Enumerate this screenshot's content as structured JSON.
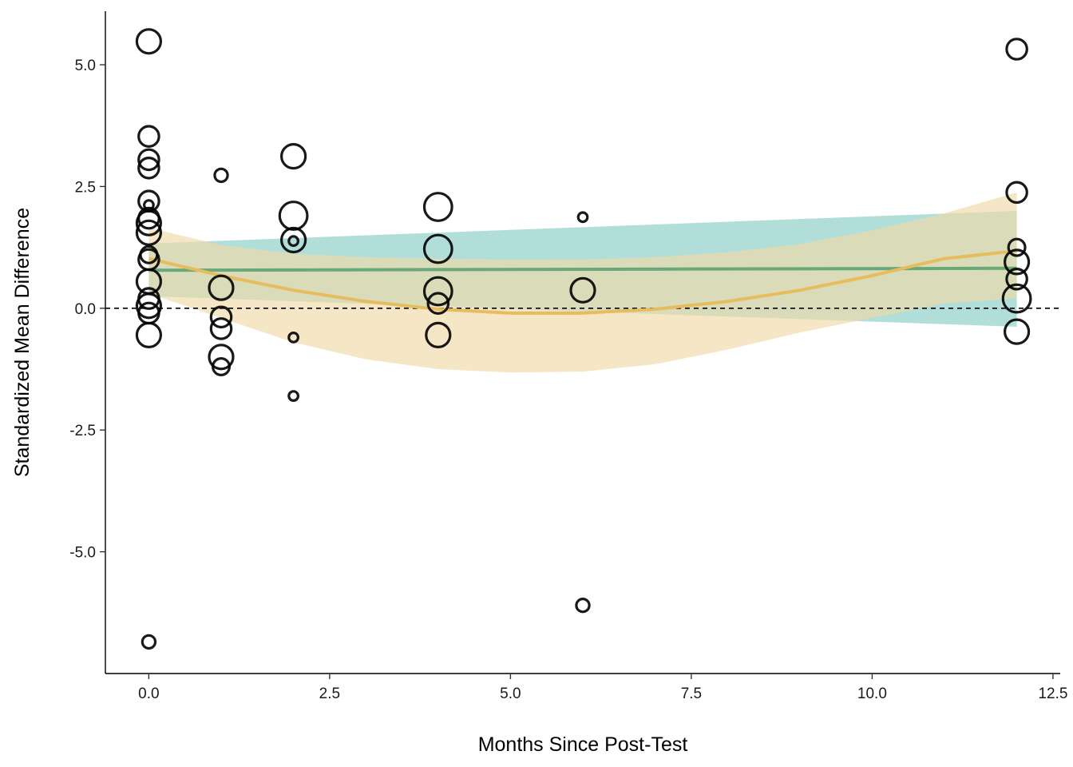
{
  "chart_data": {
    "type": "scatter",
    "title": "",
    "xlabel": "Months Since Post-Test",
    "ylabel": "Standardized Mean Difference",
    "xlim": [
      -0.6,
      12.6
    ],
    "ylim": [
      -7.5,
      6.1
    ],
    "x_ticks": [
      {
        "value": 0.0,
        "label": "0.0"
      },
      {
        "value": 2.5,
        "label": "2.5"
      },
      {
        "value": 5.0,
        "label": "5.0"
      },
      {
        "value": 7.5,
        "label": "7.5"
      },
      {
        "value": 10.0,
        "label": "10.0"
      },
      {
        "value": 12.5,
        "label": "12.5"
      }
    ],
    "y_ticks": [
      {
        "value": 5.0,
        "label": "5.0"
      },
      {
        "value": 2.5,
        "label": "2.5"
      },
      {
        "value": 0.0,
        "label": "0.0"
      },
      {
        "value": -2.5,
        "label": "-2.5"
      },
      {
        "value": -5.0,
        "label": "-5.0"
      }
    ],
    "grid": false,
    "reference_line": {
      "y": 0,
      "style": "dashed",
      "color": "#000000"
    },
    "colors": {
      "linear_fit": "#6aa87a",
      "linear_band": "#7fc8c2",
      "quadratic_fit": "#e6bd5e",
      "quadratic_band": "#efd9a6",
      "points": "#000000"
    },
    "points": [
      {
        "x": 0,
        "y": 5.48,
        "size": 5
      },
      {
        "x": 0,
        "y": 3.53,
        "size": 4
      },
      {
        "x": 0,
        "y": 3.05,
        "size": 4
      },
      {
        "x": 0,
        "y": 2.88,
        "size": 4
      },
      {
        "x": 0,
        "y": 2.2,
        "size": 4
      },
      {
        "x": 0,
        "y": 2.12,
        "size": 1
      },
      {
        "x": 0,
        "y": 1.85,
        "size": 4
      },
      {
        "x": 0,
        "y": 1.75,
        "size": 5
      },
      {
        "x": 0,
        "y": 1.55,
        "size": 5
      },
      {
        "x": 0,
        "y": 1.1,
        "size": 3
      },
      {
        "x": 0,
        "y": 1.0,
        "size": 4
      },
      {
        "x": 0,
        "y": 0.55,
        "size": 5
      },
      {
        "x": 0,
        "y": 0.2,
        "size": 4
      },
      {
        "x": 0,
        "y": 0.05,
        "size": 5
      },
      {
        "x": 0,
        "y": -0.1,
        "size": 4
      },
      {
        "x": 0,
        "y": -0.55,
        "size": 5
      },
      {
        "x": 0,
        "y": -6.85,
        "size": 2
      },
      {
        "x": 1,
        "y": 2.73,
        "size": 2
      },
      {
        "x": 1,
        "y": 0.42,
        "size": 5
      },
      {
        "x": 1,
        "y": -0.18,
        "size": 4
      },
      {
        "x": 1,
        "y": -0.42,
        "size": 4
      },
      {
        "x": 1,
        "y": -1.0,
        "size": 5
      },
      {
        "x": 1,
        "y": -1.2,
        "size": 3
      },
      {
        "x": 2,
        "y": 3.12,
        "size": 5
      },
      {
        "x": 2,
        "y": 1.9,
        "size": 6
      },
      {
        "x": 2,
        "y": 1.4,
        "size": 5
      },
      {
        "x": 2,
        "y": 1.38,
        "size": 1
      },
      {
        "x": 2,
        "y": -0.6,
        "size": 1
      },
      {
        "x": 2,
        "y": -1.8,
        "size": 1
      },
      {
        "x": 4,
        "y": 2.08,
        "size": 6
      },
      {
        "x": 4,
        "y": 1.22,
        "size": 6
      },
      {
        "x": 4,
        "y": 0.35,
        "size": 6
      },
      {
        "x": 4,
        "y": 0.1,
        "size": 4
      },
      {
        "x": 4,
        "y": -0.55,
        "size": 5
      },
      {
        "x": 6,
        "y": 1.87,
        "size": 1
      },
      {
        "x": 6,
        "y": 0.37,
        "size": 5
      },
      {
        "x": 6,
        "y": -6.1,
        "size": 2
      },
      {
        "x": 12,
        "y": 5.32,
        "size": 4
      },
      {
        "x": 12,
        "y": 2.38,
        "size": 4
      },
      {
        "x": 12,
        "y": 1.25,
        "size": 3
      },
      {
        "x": 12,
        "y": 0.95,
        "size": 5
      },
      {
        "x": 12,
        "y": 0.6,
        "size": 4
      },
      {
        "x": 12,
        "y": 0.2,
        "size": 6
      },
      {
        "x": 12,
        "y": -0.48,
        "size": 5
      }
    ],
    "linear_fit": {
      "x": [
        0,
        12
      ],
      "y": [
        0.78,
        0.82
      ],
      "ci_lower": [
        0.25,
        -0.38
      ],
      "ci_upper": [
        1.33,
        2.0
      ]
    },
    "quadratic_fit": {
      "x": [
        0,
        1,
        2,
        3,
        4,
        5,
        6,
        7,
        8,
        9,
        10,
        11,
        12
      ],
      "y": [
        1.02,
        0.67,
        0.37,
        0.14,
        -0.02,
        -0.1,
        -0.1,
        -0.02,
        0.14,
        0.37,
        0.67,
        1.02,
        1.18
      ],
      "ci_lower": [
        0.3,
        -0.2,
        -0.7,
        -1.05,
        -1.25,
        -1.32,
        -1.3,
        -1.15,
        -0.85,
        -0.5,
        -0.2,
        0.1,
        0.2
      ],
      "ci_upper": [
        1.65,
        1.3,
        1.12,
        1.05,
        1.02,
        1.0,
        1.0,
        1.05,
        1.15,
        1.32,
        1.6,
        1.95,
        2.38
      ]
    }
  }
}
